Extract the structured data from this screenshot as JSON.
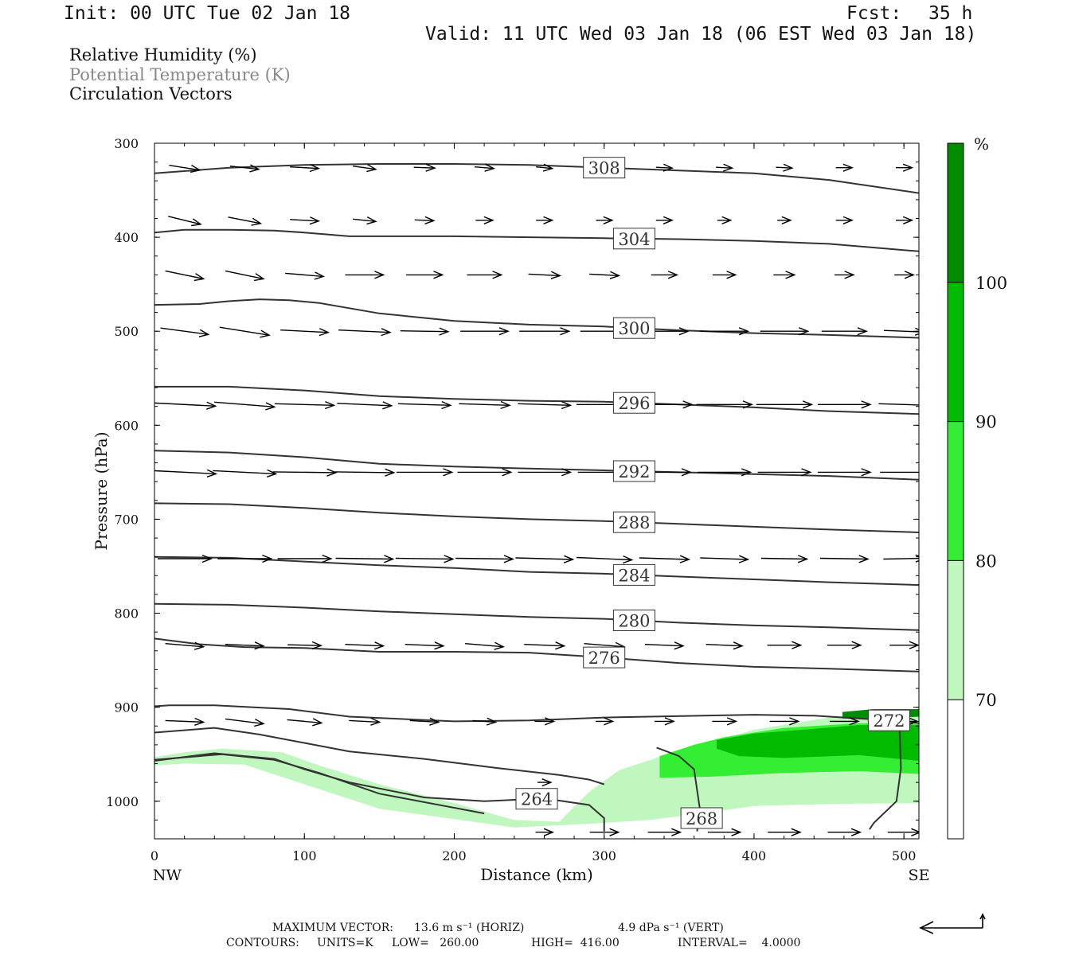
{
  "header": {
    "init": "Init: 00 UTC Tue 02 Jan 18",
    "fcst_label": "Fcst:",
    "fcst_value": "35 h",
    "valid": "Valid: 11 UTC Wed 03 Jan 18 (06 EST Wed 03 Jan 18)"
  },
  "legend": {
    "line1": "Relative Humidity (%)",
    "line2": "Potential Temperature (K)",
    "line3": "Circulation Vectors"
  },
  "footer": {
    "max_vector_label": "MAXIMUM VECTOR:",
    "horiz": "13.6 m s⁻¹ (HORIZ)",
    "vert": "4.9 dPa s⁻¹ (VERT)",
    "contours_label": "CONTOURS:",
    "units": "UNITS=K",
    "low": "LOW=   260.00",
    "high": "HIGH=  416.00",
    "interval": "INTERVAL=    4.0000"
  },
  "chart_data": {
    "type": "contour",
    "xlabel": "Distance (km)",
    "ylabel": "Pressure (hPa)",
    "xlim": [
      0,
      510
    ],
    "ylim": [
      1040,
      300
    ],
    "x_ticks": [
      0,
      100,
      200,
      300,
      400,
      500
    ],
    "y_ticks": [
      300,
      400,
      500,
      600,
      700,
      800,
      900,
      1000
    ],
    "x_end_labels": {
      "left": "NW",
      "right": "SE"
    },
    "colorbar": {
      "unit": "%",
      "levels": [
        70,
        80,
        90,
        100
      ],
      "colors": [
        "#ffffff",
        "#bff7bf",
        "#33ee33",
        "#00bb00",
        "#008c00"
      ]
    },
    "theta_contours": [
      {
        "value": 308,
        "label": "308",
        "points": [
          [
            0,
            332
          ],
          [
            50,
            326
          ],
          [
            100,
            323
          ],
          [
            150,
            322
          ],
          [
            200,
            322
          ],
          [
            250,
            323
          ],
          [
            300,
            326
          ],
          [
            350,
            329
          ],
          [
            400,
            332
          ],
          [
            450,
            339
          ],
          [
            510,
            353
          ]
        ]
      },
      {
        "value": 304,
        "label": "304",
        "points": [
          [
            0,
            395
          ],
          [
            20,
            392
          ],
          [
            50,
            392
          ],
          [
            80,
            393
          ],
          [
            100,
            395
          ],
          [
            130,
            399
          ],
          [
            200,
            399
          ],
          [
            300,
            401
          ],
          [
            350,
            402
          ],
          [
            400,
            404
          ],
          [
            450,
            407
          ],
          [
            510,
            415
          ]
        ]
      },
      {
        "value": 300,
        "label": "300",
        "points": [
          [
            0,
            472
          ],
          [
            30,
            471
          ],
          [
            50,
            468
          ],
          [
            70,
            466
          ],
          [
            90,
            467
          ],
          [
            110,
            470
          ],
          [
            150,
            481
          ],
          [
            200,
            489
          ],
          [
            250,
            493
          ],
          [
            300,
            495
          ],
          [
            350,
            499
          ],
          [
            400,
            502
          ],
          [
            450,
            504
          ],
          [
            510,
            507
          ]
        ]
      },
      {
        "value": 296,
        "label": "296",
        "points": [
          [
            0,
            559
          ],
          [
            50,
            559
          ],
          [
            100,
            563
          ],
          [
            150,
            569
          ],
          [
            200,
            572
          ],
          [
            250,
            574
          ],
          [
            300,
            575
          ],
          [
            350,
            578
          ],
          [
            400,
            581
          ],
          [
            450,
            585
          ],
          [
            510,
            588
          ]
        ]
      },
      {
        "value": 292,
        "label": "292",
        "points": [
          [
            0,
            627
          ],
          [
            50,
            629
          ],
          [
            100,
            634
          ],
          [
            150,
            641
          ],
          [
            200,
            644
          ],
          [
            250,
            646
          ],
          [
            300,
            648
          ],
          [
            350,
            650
          ],
          [
            400,
            652
          ],
          [
            450,
            654
          ],
          [
            510,
            658
          ]
        ]
      },
      {
        "value": 288,
        "label": "288",
        "points": [
          [
            0,
            683
          ],
          [
            50,
            684
          ],
          [
            100,
            688
          ],
          [
            150,
            693
          ],
          [
            200,
            697
          ],
          [
            250,
            700
          ],
          [
            300,
            702
          ],
          [
            350,
            705
          ],
          [
            400,
            708
          ],
          [
            450,
            711
          ],
          [
            510,
            714
          ]
        ]
      },
      {
        "value": 284,
        "label": "284",
        "points": [
          [
            0,
            740
          ],
          [
            50,
            741
          ],
          [
            100,
            745
          ],
          [
            150,
            749
          ],
          [
            200,
            752
          ],
          [
            250,
            756
          ],
          [
            300,
            758
          ],
          [
            350,
            761
          ],
          [
            400,
            764
          ],
          [
            450,
            767
          ],
          [
            510,
            770
          ]
        ]
      },
      {
        "value": 280,
        "label": "280",
        "points": [
          [
            0,
            790
          ],
          [
            50,
            791
          ],
          [
            100,
            794
          ],
          [
            150,
            798
          ],
          [
            200,
            801
          ],
          [
            250,
            804
          ],
          [
            300,
            806
          ],
          [
            350,
            810
          ],
          [
            400,
            813
          ],
          [
            450,
            815
          ],
          [
            510,
            818
          ]
        ]
      },
      {
        "value": 276,
        "label": "276",
        "points": [
          [
            0,
            827
          ],
          [
            30,
            833
          ],
          [
            60,
            836
          ],
          [
            100,
            837
          ],
          [
            150,
            841
          ],
          [
            200,
            841
          ],
          [
            250,
            842
          ],
          [
            300,
            847
          ],
          [
            350,
            853
          ],
          [
            400,
            857
          ],
          [
            450,
            859
          ],
          [
            510,
            862
          ]
        ]
      },
      {
        "value": 272,
        "label": "272",
        "points": [
          [
            0,
            899
          ],
          [
            10,
            898
          ],
          [
            40,
            898
          ],
          [
            90,
            902
          ],
          [
            130,
            910
          ],
          [
            200,
            915
          ],
          [
            250,
            914
          ],
          [
            300,
            911
          ],
          [
            400,
            908
          ],
          [
            440,
            909
          ],
          [
            500,
            915
          ],
          [
            510,
            917
          ]
        ]
      },
      {
        "value": 272,
        "label": "",
        "points": [
          [
            497,
            917
          ],
          [
            498,
            965
          ],
          [
            495,
            1000
          ],
          [
            480,
            1023
          ],
          [
            477,
            1030
          ]
        ]
      },
      {
        "value": 268,
        "label": "",
        "points": [
          [
            0,
            927
          ],
          [
            40,
            922
          ],
          [
            70,
            929
          ],
          [
            100,
            938
          ],
          [
            130,
            947
          ],
          [
            180,
            955
          ],
          [
            230,
            965
          ],
          [
            270,
            972
          ],
          [
            290,
            977
          ],
          [
            300,
            982
          ]
        ]
      },
      {
        "value": 268,
        "label": "268",
        "points": [
          [
            335,
            943
          ],
          [
            350,
            952
          ],
          [
            360,
            966
          ],
          [
            364,
            1010
          ],
          [
            362,
            1032
          ]
        ]
      },
      {
        "value": 264,
        "label": "264",
        "points": [
          [
            0,
            957
          ],
          [
            40,
            949
          ],
          [
            80,
            955
          ],
          [
            100,
            966
          ],
          [
            130,
            980
          ],
          [
            180,
            996
          ],
          [
            220,
            1000
          ],
          [
            260,
            997
          ],
          [
            290,
            1004
          ],
          [
            300,
            1018
          ],
          [
            300,
            1032
          ]
        ]
      },
      {
        "value": 260,
        "label": "",
        "points": [
          [
            0,
            956
          ],
          [
            45,
            950
          ],
          [
            80,
            956
          ],
          [
            110,
            970
          ],
          [
            150,
            992
          ],
          [
            220,
            1013
          ]
        ]
      }
    ],
    "humidity_regions": [
      {
        "level": 70,
        "points": [
          [
            0,
            953
          ],
          [
            20,
            948
          ],
          [
            45,
            944
          ],
          [
            85,
            948
          ],
          [
            110,
            962
          ],
          [
            150,
            982
          ],
          [
            200,
            1002
          ],
          [
            240,
            1020
          ],
          [
            270,
            1022
          ],
          [
            290,
            990
          ],
          [
            310,
            967
          ],
          [
            350,
            946
          ],
          [
            400,
            924
          ],
          [
            450,
            911
          ],
          [
            510,
            908
          ],
          [
            510,
            1002
          ],
          [
            450,
            1003
          ],
          [
            400,
            1005
          ],
          [
            370,
            1012
          ],
          [
            330,
            1020
          ],
          [
            290,
            1024
          ],
          [
            240,
            1028
          ],
          [
            150,
            1008
          ],
          [
            100,
            982
          ],
          [
            60,
            961
          ],
          [
            20,
            960
          ],
          [
            0,
            962
          ]
        ]
      },
      {
        "level": 80,
        "points": [
          [
            337,
            952
          ],
          [
            360,
            940
          ],
          [
            380,
            932
          ],
          [
            420,
            922
          ],
          [
            470,
            917
          ],
          [
            510,
            918
          ],
          [
            510,
            971
          ],
          [
            470,
            968
          ],
          [
            420,
            970
          ],
          [
            370,
            974
          ],
          [
            337,
            975
          ]
        ]
      },
      {
        "level": 90,
        "points": [
          [
            375,
            935
          ],
          [
            400,
            928
          ],
          [
            440,
            923
          ],
          [
            470,
            919
          ],
          [
            510,
            919
          ],
          [
            510,
            957
          ],
          [
            470,
            951
          ],
          [
            420,
            954
          ],
          [
            390,
            952
          ],
          [
            375,
            944
          ]
        ]
      },
      {
        "level": 100,
        "points": [
          [
            459,
            905
          ],
          [
            480,
            902
          ],
          [
            510,
            902
          ],
          [
            510,
            910
          ],
          [
            480,
            912
          ],
          [
            459,
            912
          ]
        ]
      }
    ],
    "vectors": [
      {
        "row": 0,
        "y": 0,
        "items": []
      }
    ]
  }
}
